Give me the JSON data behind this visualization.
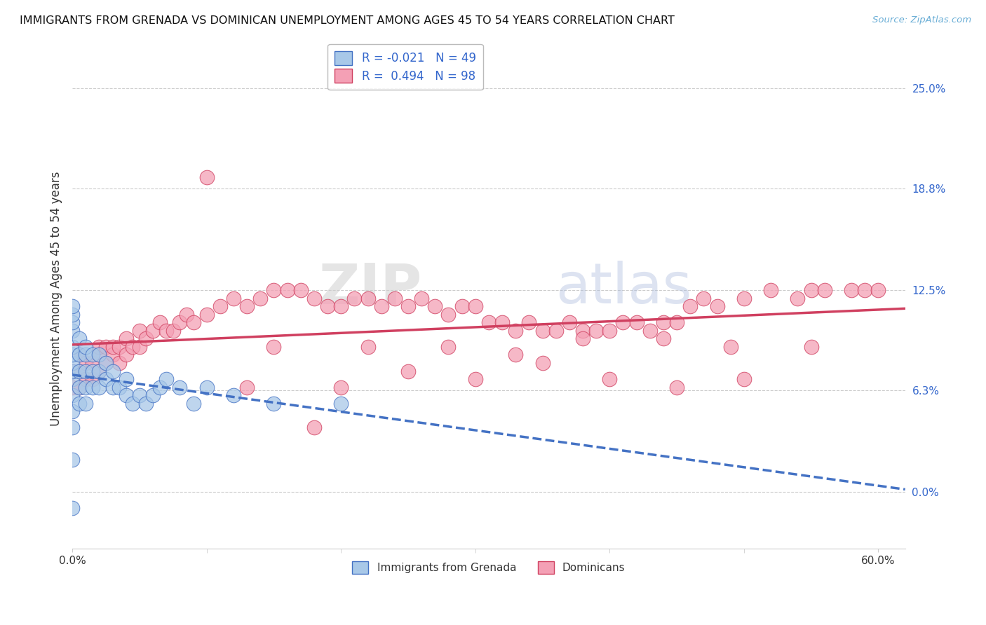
{
  "title": "IMMIGRANTS FROM GRENADA VS DOMINICAN UNEMPLOYMENT AMONG AGES 45 TO 54 YEARS CORRELATION CHART",
  "source": "Source: ZipAtlas.com",
  "ylabel_label": "Unemployment Among Ages 45 to 54 years",
  "legend_label1": "Immigrants from Grenada",
  "legend_label2": "Dominicans",
  "color_blue": "#a8c8e8",
  "color_pink": "#f4a0b5",
  "color_line_blue": "#4472c4",
  "color_line_pink": "#d04060",
  "watermark_zip": "ZIP",
  "watermark_atlas": "atlas",
  "xlim": [
    0.0,
    0.62
  ],
  "ylim": [
    -0.035,
    0.275
  ],
  "ytick_vals": [
    0.0,
    0.063,
    0.125,
    0.188,
    0.25
  ],
  "ytick_labels": [
    "0.0%",
    "6.3%",
    "12.5%",
    "18.8%",
    "25.0%"
  ],
  "xtick_vals": [
    0.0,
    0.6
  ],
  "xtick_labels": [
    "0.0%",
    "60.0%"
  ],
  "background_color": "#ffffff",
  "grid_color": "#cccccc",
  "blue_scatter_x": [
    0.0,
    0.0,
    0.0,
    0.0,
    0.0,
    0.0,
    0.0,
    0.0,
    0.0,
    0.0,
    0.0,
    0.0,
    0.005,
    0.005,
    0.005,
    0.005,
    0.005,
    0.01,
    0.01,
    0.01,
    0.01,
    0.01,
    0.015,
    0.015,
    0.015,
    0.02,
    0.02,
    0.02,
    0.025,
    0.025,
    0.03,
    0.03,
    0.035,
    0.04,
    0.04,
    0.045,
    0.05,
    0.055,
    0.06,
    0.065,
    0.07,
    0.08,
    0.09,
    0.1,
    0.12,
    0.15,
    0.2,
    0.0,
    0.0
  ],
  "blue_scatter_y": [
    0.04,
    0.05,
    0.06,
    0.07,
    0.075,
    0.08,
    0.085,
    0.09,
    0.1,
    0.105,
    0.11,
    0.115,
    0.055,
    0.065,
    0.075,
    0.085,
    0.095,
    0.055,
    0.065,
    0.075,
    0.085,
    0.09,
    0.065,
    0.075,
    0.085,
    0.065,
    0.075,
    0.085,
    0.07,
    0.08,
    0.065,
    0.075,
    0.065,
    0.06,
    0.07,
    0.055,
    0.06,
    0.055,
    0.06,
    0.065,
    0.07,
    0.065,
    0.055,
    0.065,
    0.06,
    0.055,
    0.055,
    0.02,
    -0.01
  ],
  "pink_scatter_x": [
    0.0,
    0.0,
    0.005,
    0.005,
    0.005,
    0.01,
    0.01,
    0.015,
    0.015,
    0.02,
    0.02,
    0.02,
    0.025,
    0.025,
    0.03,
    0.03,
    0.035,
    0.035,
    0.04,
    0.04,
    0.045,
    0.05,
    0.05,
    0.055,
    0.06,
    0.065,
    0.07,
    0.075,
    0.08,
    0.085,
    0.09,
    0.1,
    0.11,
    0.12,
    0.13,
    0.14,
    0.15,
    0.16,
    0.17,
    0.18,
    0.19,
    0.2,
    0.21,
    0.22,
    0.23,
    0.24,
    0.25,
    0.26,
    0.27,
    0.28,
    0.29,
    0.3,
    0.31,
    0.32,
    0.33,
    0.34,
    0.35,
    0.36,
    0.37,
    0.38,
    0.39,
    0.4,
    0.41,
    0.42,
    0.43,
    0.44,
    0.45,
    0.46,
    0.47,
    0.48,
    0.5,
    0.52,
    0.54,
    0.55,
    0.56,
    0.58,
    0.59,
    0.6,
    0.13,
    0.2,
    0.25,
    0.3,
    0.35,
    0.4,
    0.45,
    0.5,
    0.15,
    0.22,
    0.28,
    0.33,
    0.38,
    0.44,
    0.49,
    0.55,
    0.1,
    0.18
  ],
  "pink_scatter_y": [
    0.065,
    0.075,
    0.065,
    0.075,
    0.085,
    0.07,
    0.08,
    0.07,
    0.08,
    0.075,
    0.085,
    0.09,
    0.08,
    0.09,
    0.085,
    0.09,
    0.08,
    0.09,
    0.085,
    0.095,
    0.09,
    0.09,
    0.1,
    0.095,
    0.1,
    0.105,
    0.1,
    0.1,
    0.105,
    0.11,
    0.105,
    0.11,
    0.115,
    0.12,
    0.115,
    0.12,
    0.125,
    0.125,
    0.125,
    0.12,
    0.115,
    0.115,
    0.12,
    0.12,
    0.115,
    0.12,
    0.115,
    0.12,
    0.115,
    0.11,
    0.115,
    0.115,
    0.105,
    0.105,
    0.1,
    0.105,
    0.1,
    0.1,
    0.105,
    0.1,
    0.1,
    0.1,
    0.105,
    0.105,
    0.1,
    0.105,
    0.105,
    0.115,
    0.12,
    0.115,
    0.12,
    0.125,
    0.12,
    0.125,
    0.125,
    0.125,
    0.125,
    0.125,
    0.065,
    0.065,
    0.075,
    0.07,
    0.08,
    0.07,
    0.065,
    0.07,
    0.09,
    0.09,
    0.09,
    0.085,
    0.095,
    0.095,
    0.09,
    0.09,
    0.195,
    0.04
  ]
}
